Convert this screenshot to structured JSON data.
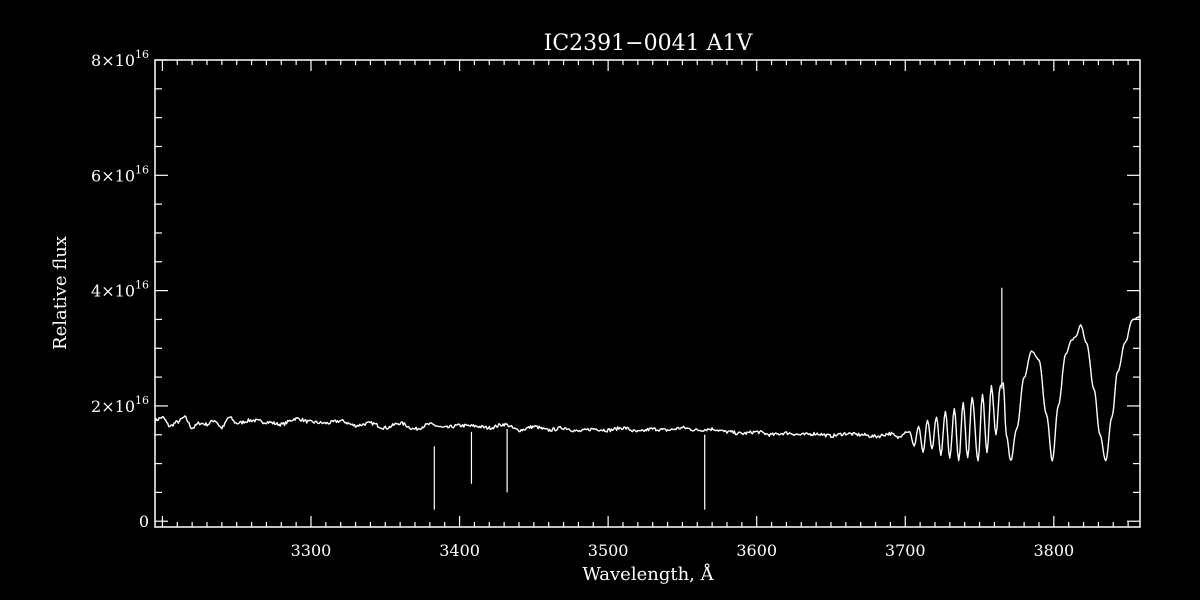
{
  "chart_data": {
    "type": "line",
    "title": "IC2391−0041   A1V",
    "xlabel": "Wavelength, Å",
    "ylabel": "Relative flux",
    "xlim": [
      3195,
      3858
    ],
    "ylim": [
      -1000000000000000.0,
      8e+16
    ],
    "x_ticks": [
      3300,
      3400,
      3500,
      3600,
      3700,
      3800
    ],
    "x_tick_labels": [
      "3300",
      "3400",
      "3500",
      "3600",
      "3700",
      "3800"
    ],
    "y_ticks": [
      0,
      2e+16,
      4e+16,
      6e+16,
      8e+16
    ],
    "y_tick_labels": [
      {
        "base": "0",
        "exp": ""
      },
      {
        "base": "2×10",
        "exp": "16"
      },
      {
        "base": "4×10",
        "exp": "16"
      },
      {
        "base": "6×10",
        "exp": "16"
      },
      {
        "base": "8×10",
        "exp": "16"
      }
    ],
    "grid": false,
    "series": [
      {
        "x": [
          3195,
          3200,
          3205,
          3210,
          3215,
          3220,
          3225,
          3230,
          3235,
          3240,
          3245,
          3250,
          3260,
          3270,
          3280,
          3290,
          3300,
          3310,
          3320,
          3330,
          3340,
          3350,
          3360,
          3370,
          3380,
          3390,
          3400,
          3410,
          3420,
          3430,
          3440,
          3450,
          3460,
          3470,
          3480,
          3490,
          3500,
          3510,
          3520,
          3530,
          3540,
          3550,
          3560,
          3570,
          3580,
          3590,
          3600,
          3610,
          3620,
          3630,
          3640,
          3650,
          3660,
          3670,
          3680,
          3690,
          3695,
          3700,
          3703,
          3706,
          3709,
          3712,
          3715,
          3718,
          3721,
          3724,
          3727,
          3730,
          3733,
          3736,
          3739,
          3742,
          3745,
          3749,
          3752,
          3755,
          3758,
          3761,
          3764,
          3766,
          3768,
          3771,
          3775,
          3780,
          3785,
          3790,
          3795,
          3799,
          3803,
          3808,
          3812,
          3815,
          3818,
          3822,
          3827,
          3831,
          3835,
          3839,
          3843,
          3848,
          3853,
          3858
        ],
        "y": [
          1.75e+16,
          1.8e+16,
          1.65e+16,
          1.72e+16,
          1.8e+16,
          1.62e+16,
          1.7e+16,
          1.68e+16,
          1.75e+16,
          1.62e+16,
          1.8e+16,
          1.7e+16,
          1.75e+16,
          1.72e+16,
          1.68e+16,
          1.78e+16,
          1.72e+16,
          1.7e+16,
          1.74e+16,
          1.66e+16,
          1.7e+16,
          1.62e+16,
          1.7e+16,
          1.6e+16,
          1.68e+16,
          1.62e+16,
          1.66e+16,
          1.65e+16,
          1.62e+16,
          1.68e+16,
          1.58e+16,
          1.64e+16,
          1.58e+16,
          1.62e+16,
          1.56e+16,
          1.6e+16,
          1.58e+16,
          1.62e+16,
          1.55e+16,
          1.6e+16,
          1.58e+16,
          1.62e+16,
          1.58e+16,
          1.6e+16,
          1.55e+16,
          1.52e+16,
          1.55e+16,
          1.5e+16,
          1.53e+16,
          1.5e+16,
          1.52e+16,
          1.48e+16,
          1.52e+16,
          1.5e+16,
          1.47e+16,
          1.52e+16,
          1.45e+16,
          1.55e+16,
          1.55e+16,
          1.3e+16,
          1.65e+16,
          1.2e+16,
          1.75e+16,
          1.25e+16,
          1.8e+16,
          1.15e+16,
          1.9e+16,
          1.1e+16,
          1.95e+16,
          1.05e+16,
          2.05e+16,
          1.1e+16,
          2.15e+16,
          1.05e+16,
          2.2e+16,
          1.2e+16,
          2.35e+16,
          1.5e+16,
          2.35e+16,
          2.4e+16,
          1.5e+16,
          1.05e+16,
          1.6e+16,
          2.5e+16,
          2.95e+16,
          2.8e+16,
          1.85e+16,
          1.05e+16,
          2e+16,
          2.9e+16,
          3.15e+16,
          3.2e+16,
          3.4e+16,
          3.1e+16,
          2.3e+16,
          1.5e+16,
          1.05e+16,
          1.8e+16,
          2.6e+16,
          3.1e+16,
          3.5e+16,
          3.55e+16
        ]
      }
    ],
    "spikes": [
      {
        "x": 3383,
        "y_top": 1.3e+16,
        "y_bottom": 2000000000000000.0
      },
      {
        "x": 3408,
        "y_top": 1.55e+16,
        "y_bottom": 6500000000000000.0
      },
      {
        "x": 3432,
        "y_top": 1.6e+16,
        "y_bottom": 5000000000000000.0
      },
      {
        "x": 3565,
        "y_top": 1.5e+16,
        "y_bottom": 2000000000000000.0
      },
      {
        "x": 3765,
        "y_top": 4.05e+16,
        "y_bottom": 2.3e+16
      }
    ]
  }
}
